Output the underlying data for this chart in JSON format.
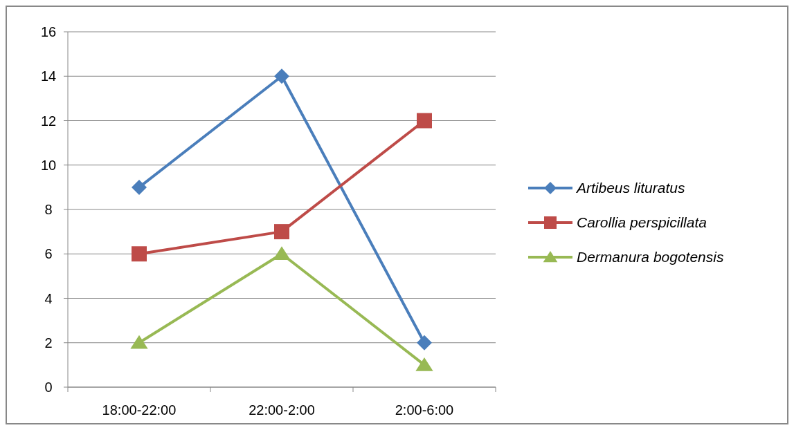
{
  "chart_data": {
    "type": "line",
    "categories": [
      "18:00-22:00",
      "22:00-2:00",
      "2:00-6:00"
    ],
    "series": [
      {
        "name": "Artibeus lituratus",
        "color": "#4a7ebb",
        "marker": "diamond",
        "values": [
          9,
          14,
          2
        ]
      },
      {
        "name": "Carollia perspicillata",
        "color": "#be4b48",
        "marker": "square",
        "values": [
          6,
          7,
          12
        ]
      },
      {
        "name": "Dermanura bogotensis",
        "color": "#98b954",
        "marker": "triangle",
        "values": [
          2,
          6,
          1
        ]
      }
    ],
    "ylim": [
      0,
      16
    ],
    "yticks": [
      0,
      2,
      4,
      6,
      8,
      10,
      12,
      14,
      16
    ],
    "grid": "y",
    "legend": "right"
  }
}
